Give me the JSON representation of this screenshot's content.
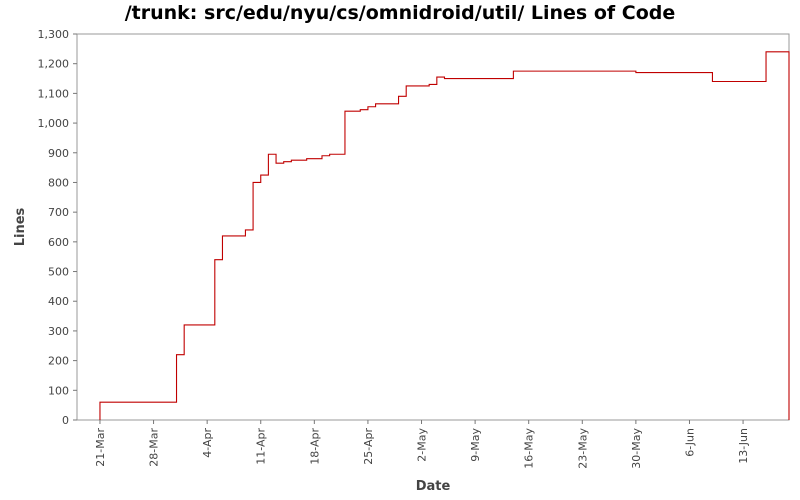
{
  "chart_data": {
    "type": "line",
    "step": true,
    "title": "/trunk: src/edu/nyu/cs/omnidroid/util/ Lines of Code",
    "xlabel": "Date",
    "ylabel": "Lines",
    "ylim": [
      0,
      1300
    ],
    "yticks": [
      0,
      100,
      200,
      300,
      400,
      500,
      600,
      700,
      800,
      900,
      1000,
      1100,
      1200,
      1300
    ],
    "ytick_labels": [
      "0",
      "100",
      "200",
      "300",
      "400",
      "500",
      "600",
      "700",
      "800",
      "900",
      "1,000",
      "1,100",
      "1,200",
      "1,300"
    ],
    "xlim": [
      "2008-03-18",
      "2008-06-19"
    ],
    "xticks": [
      "2008-03-21",
      "2008-03-28",
      "2008-04-04",
      "2008-04-11",
      "2008-04-18",
      "2008-04-25",
      "2008-05-02",
      "2008-05-09",
      "2008-05-16",
      "2008-05-23",
      "2008-05-30",
      "2008-06-06",
      "2008-06-13"
    ],
    "xtick_labels": [
      "21-Mar",
      "28-Mar",
      "4-Apr",
      "11-Apr",
      "18-Apr",
      "25-Apr",
      "2-May",
      "9-May",
      "16-May",
      "23-May",
      "30-May",
      "6-Jun",
      "13-Jun"
    ],
    "grid": false,
    "legend": "none",
    "line_color": "#c00000",
    "series": [
      {
        "x": [
          "2008-03-21",
          "2008-03-31",
          "2008-03-31",
          "2008-04-01",
          "2008-04-05",
          "2008-04-06",
          "2008-04-09",
          "2008-04-10",
          "2008-04-11",
          "2008-04-12",
          "2008-04-12",
          "2008-04-13",
          "2008-04-14",
          "2008-04-15",
          "2008-04-17",
          "2008-04-19",
          "2008-04-20",
          "2008-04-22",
          "2008-04-22",
          "2008-04-22",
          "2008-04-24",
          "2008-04-25",
          "2008-04-26",
          "2008-04-26",
          "2008-04-29",
          "2008-04-30",
          "2008-05-03",
          "2008-05-04",
          "2008-05-05",
          "2008-05-14",
          "2008-05-30",
          "2008-06-09",
          "2008-06-16"
        ],
        "y": [
          60,
          90,
          220,
          320,
          540,
          620,
          640,
          800,
          825,
          860,
          895,
          865,
          870,
          875,
          880,
          890,
          895,
          900,
          1000,
          1040,
          1045,
          1055,
          1060,
          1065,
          1090,
          1125,
          1130,
          1155,
          1150,
          1175,
          1170,
          1140,
          1240
        ]
      }
    ],
    "drop_to_zero_date": "2008-06-19"
  }
}
